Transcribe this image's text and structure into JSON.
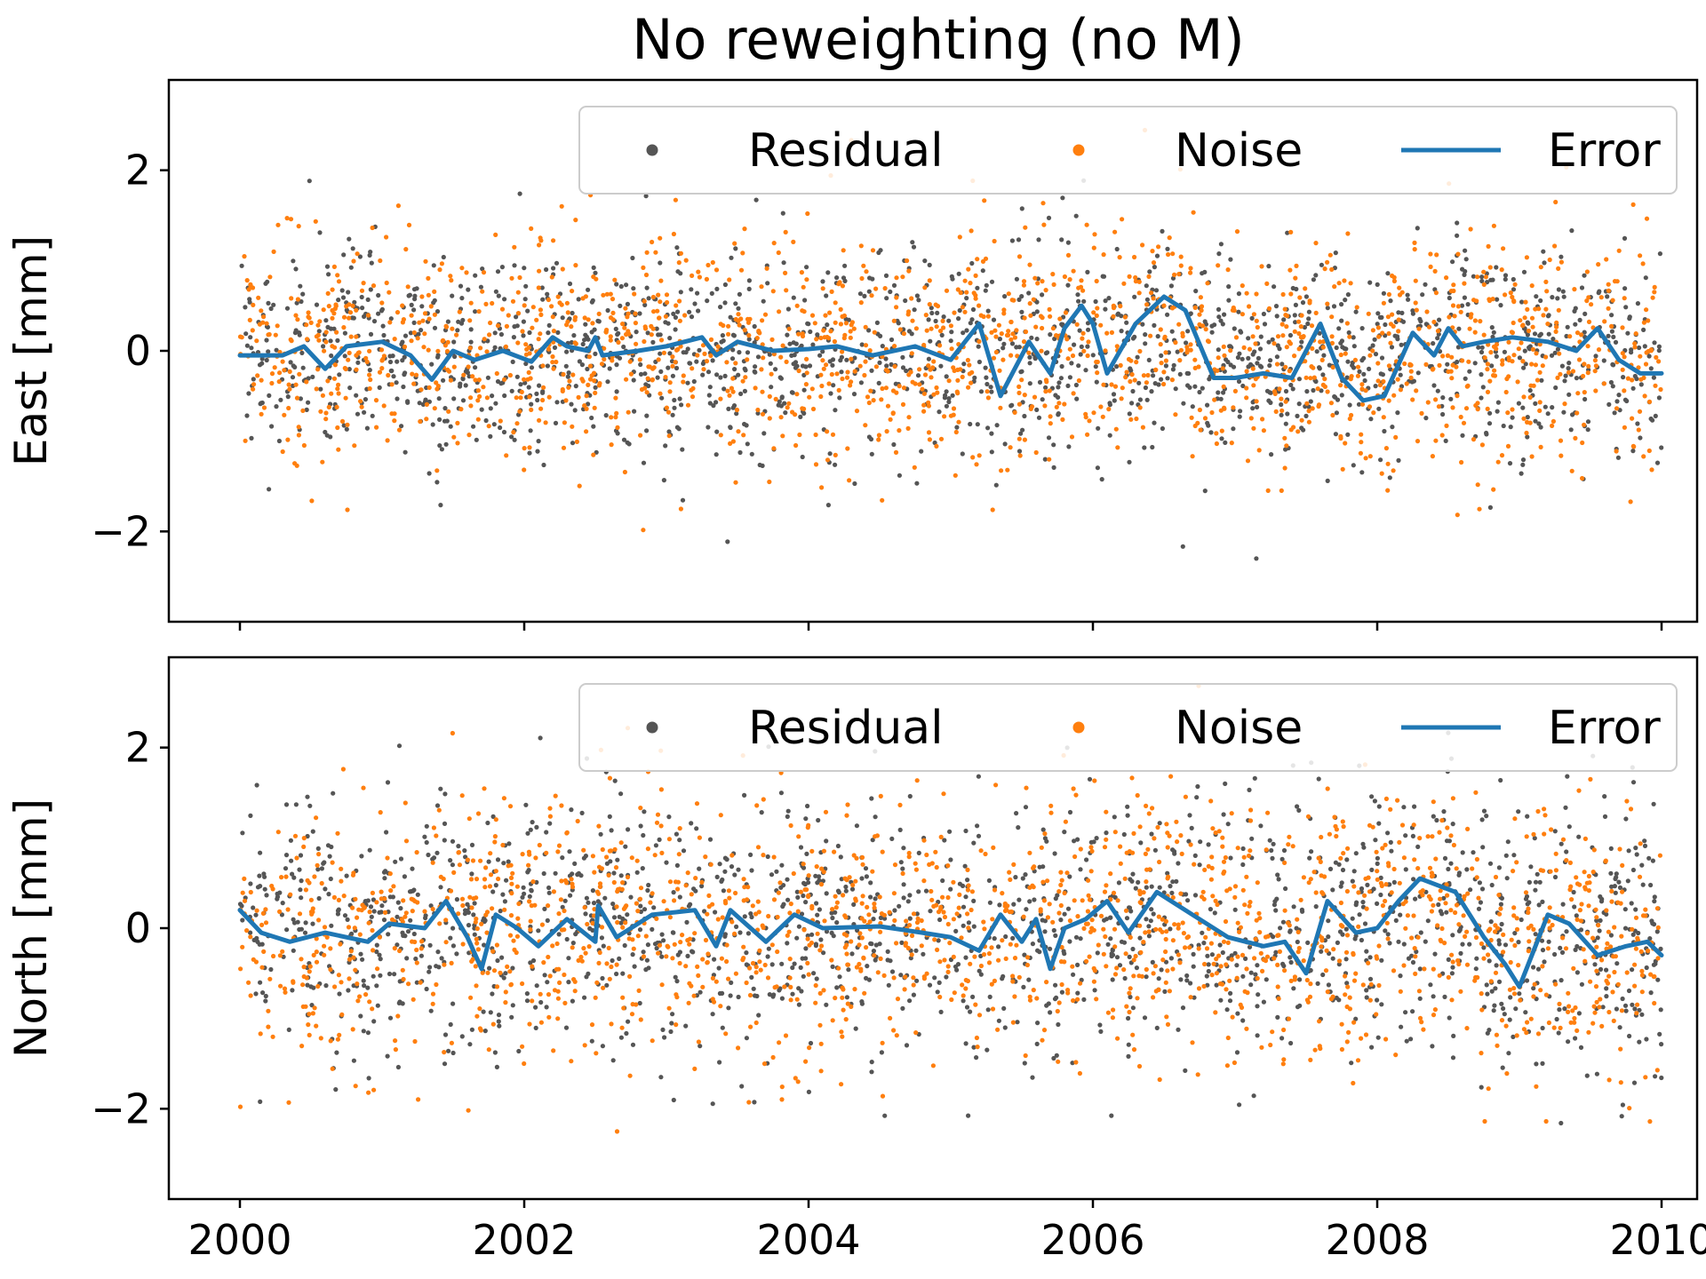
{
  "figure": {
    "title": "No reweighting (no M)"
  },
  "legend": {
    "placement": "upper-right",
    "entries": [
      {
        "label": "Residual",
        "kind": "dot",
        "color": "#555555"
      },
      {
        "label": "Noise",
        "kind": "dot",
        "color": "#ff7f0e"
      },
      {
        "label": "Error",
        "kind": "line",
        "color": "#1f77b4"
      }
    ]
  },
  "colors": {
    "residual": "#555555",
    "noise": "#ff7f0e",
    "error": "#1f77b4"
  },
  "chart_data": [
    {
      "type": "scatter",
      "panel": "east",
      "ylabel": "East [mm]",
      "xlim": [
        1999.5,
        2010.25
      ],
      "ylim": [
        -3,
        3
      ],
      "yticks": [
        -2,
        0,
        2
      ],
      "ytick_labels": [
        "−2",
        "0",
        "2"
      ],
      "xticks": [
        2000,
        2002,
        2004,
        2006,
        2008,
        2010
      ],
      "xtick_labels": [],
      "scatter_x_range": [
        2000,
        2010
      ],
      "scatter_spread": {
        "residual_std": 0.55,
        "noise_std": 0.62,
        "approx_points_per_series": 1700
      },
      "series": [
        {
          "name": "Residual",
          "style": "dots"
        },
        {
          "name": "Noise",
          "style": "dots"
        },
        {
          "name": "Error",
          "style": "line",
          "x": [
            2000.0,
            2000.3,
            2000.45,
            2000.6,
            2000.75,
            2001.0,
            2001.2,
            2001.35,
            2001.5,
            2001.65,
            2001.85,
            2002.05,
            2002.2,
            2002.3,
            2002.45,
            2002.5,
            2002.55,
            2002.8,
            2003.0,
            2003.25,
            2003.35,
            2003.5,
            2003.75,
            2004.0,
            2004.2,
            2004.45,
            2004.75,
            2005.0,
            2005.2,
            2005.35,
            2005.55,
            2005.7,
            2005.8,
            2005.92,
            2006.0,
            2006.1,
            2006.3,
            2006.5,
            2006.65,
            2006.85,
            2007.0,
            2007.2,
            2007.4,
            2007.6,
            2007.75,
            2007.9,
            2008.05,
            2008.25,
            2008.4,
            2008.5,
            2008.6,
            2008.75,
            2008.95,
            2009.2,
            2009.4,
            2009.55,
            2009.7,
            2009.85,
            2010.0
          ],
          "y": [
            -0.05,
            -0.05,
            0.05,
            -0.2,
            0.05,
            0.1,
            -0.05,
            -0.32,
            0.0,
            -0.1,
            0.0,
            -0.12,
            0.15,
            0.05,
            0.0,
            0.15,
            -0.05,
            0.0,
            0.05,
            0.15,
            -0.05,
            0.1,
            0.0,
            0.02,
            0.05,
            -0.05,
            0.05,
            -0.1,
            0.3,
            -0.5,
            0.1,
            -0.25,
            0.25,
            0.5,
            0.3,
            -0.25,
            0.3,
            0.6,
            0.45,
            -0.3,
            -0.3,
            -0.25,
            -0.3,
            0.3,
            -0.3,
            -0.55,
            -0.5,
            0.2,
            -0.05,
            0.25,
            0.05,
            0.1,
            0.15,
            0.1,
            0.0,
            0.25,
            -0.1,
            -0.25,
            -0.25
          ]
        }
      ]
    },
    {
      "type": "scatter",
      "panel": "north",
      "ylabel": "North [mm]",
      "xlim": [
        1999.5,
        2010.25
      ],
      "ylim": [
        -3,
        3
      ],
      "yticks": [
        -2,
        0,
        2
      ],
      "ytick_labels": [
        "−2",
        "0",
        "2"
      ],
      "xticks": [
        2000,
        2002,
        2004,
        2006,
        2008,
        2010
      ],
      "xtick_labels": [
        "2000",
        "2002",
        "2004",
        "2006",
        "2008",
        "2010"
      ],
      "scatter_x_range": [
        2000,
        2010
      ],
      "scatter_spread": {
        "residual_std": 0.72,
        "noise_std": 0.7,
        "approx_points_per_series": 1700
      },
      "series": [
        {
          "name": "Residual",
          "style": "dots"
        },
        {
          "name": "Noise",
          "style": "dots"
        },
        {
          "name": "Error",
          "style": "line",
          "x": [
            2000.0,
            2000.15,
            2000.35,
            2000.6,
            2000.9,
            2001.05,
            2001.3,
            2001.45,
            2001.6,
            2001.7,
            2001.8,
            2001.95,
            2002.1,
            2002.3,
            2002.5,
            2002.52,
            2002.65,
            2002.9,
            2003.2,
            2003.35,
            2003.45,
            2003.7,
            2003.9,
            2004.1,
            2004.5,
            2004.8,
            2005.0,
            2005.2,
            2005.35,
            2005.5,
            2005.6,
            2005.7,
            2005.8,
            2005.95,
            2006.1,
            2006.25,
            2006.45,
            2006.7,
            2006.95,
            2007.2,
            2007.35,
            2007.5,
            2007.65,
            2007.85,
            2008.0,
            2008.15,
            2008.3,
            2008.55,
            2008.75,
            2008.9,
            2009.0,
            2009.2,
            2009.35,
            2009.55,
            2009.75,
            2009.9,
            2010.0
          ],
          "y": [
            0.2,
            -0.05,
            -0.15,
            -0.05,
            -0.15,
            0.05,
            0.0,
            0.3,
            -0.1,
            -0.45,
            0.15,
            0.0,
            -0.2,
            0.1,
            -0.15,
            0.25,
            -0.1,
            0.15,
            0.2,
            -0.2,
            0.2,
            -0.15,
            0.15,
            0.0,
            0.02,
            -0.05,
            -0.1,
            -0.25,
            0.15,
            -0.15,
            0.1,
            -0.45,
            0.0,
            0.1,
            0.3,
            -0.05,
            0.4,
            0.15,
            -0.1,
            -0.2,
            -0.15,
            -0.5,
            0.3,
            -0.05,
            0.0,
            0.3,
            0.55,
            0.4,
            -0.1,
            -0.4,
            -0.65,
            0.15,
            0.05,
            -0.3,
            -0.2,
            -0.15,
            -0.3
          ]
        }
      ]
    }
  ]
}
